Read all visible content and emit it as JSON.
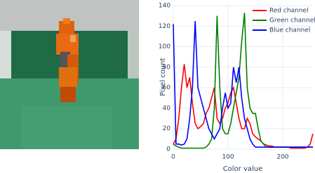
{
  "chart_data": {
    "type": "line",
    "x_label": "Color value",
    "y_label": "Pixel count",
    "x": [
      0,
      5,
      10,
      15,
      20,
      25,
      30,
      35,
      40,
      45,
      50,
      55,
      60,
      65,
      70,
      75,
      80,
      85,
      90,
      95,
      100,
      105,
      110,
      115,
      120,
      125,
      130,
      135,
      140,
      145,
      150,
      155,
      160,
      165,
      170,
      175,
      180,
      185,
      190,
      195,
      200,
      205,
      210,
      215,
      220,
      225,
      230,
      235,
      240,
      245,
      250,
      255
    ],
    "series": [
      {
        "name": "Red channel",
        "color": "#ff0000",
        "values": [
          5,
          10,
          30,
          60,
          83,
          60,
          70,
          45,
          25,
          20,
          22,
          25,
          35,
          40,
          50,
          60,
          30,
          25,
          30,
          40,
          45,
          55,
          60,
          45,
          30,
          20,
          20,
          30,
          25,
          15,
          12,
          10,
          8,
          5,
          4,
          3,
          3,
          2,
          2,
          2,
          2,
          2,
          2,
          1,
          1,
          1,
          1,
          1,
          1,
          2,
          5,
          15
        ]
      },
      {
        "name": "Green channel",
        "color": "#008000",
        "values": [
          5,
          3,
          2,
          1,
          1,
          1,
          1,
          1,
          1,
          1,
          1,
          1,
          2,
          5,
          10,
          40,
          130,
          60,
          20,
          15,
          15,
          25,
          40,
          55,
          70,
          105,
          133,
          60,
          40,
          35,
          35,
          20,
          8,
          5,
          2,
          2,
          2,
          2,
          2,
          2,
          2,
          2,
          2,
          2,
          2,
          2,
          2,
          2,
          2,
          2,
          2,
          2
        ]
      },
      {
        "name": "Blue channel",
        "color": "#0000ff",
        "values": [
          122,
          5,
          5,
          4,
          5,
          10,
          30,
          60,
          125,
          60,
          50,
          40,
          30,
          20,
          15,
          10,
          15,
          20,
          40,
          55,
          40,
          45,
          80,
          65,
          80,
          50,
          30,
          20,
          10,
          5,
          2,
          2,
          2,
          2,
          2,
          2,
          2,
          2,
          2,
          2,
          2,
          2,
          2,
          2,
          2,
          2,
          2,
          2,
          2,
          2,
          2,
          2
        ]
      }
    ],
    "xlim": [
      0,
      255
    ],
    "ylim": [
      0,
      140
    ],
    "xticks": [
      0,
      100,
      200
    ],
    "yticks": [
      0,
      20,
      40,
      60,
      80,
      100,
      120,
      140
    ],
    "grid": true,
    "legend": "top-right"
  }
}
